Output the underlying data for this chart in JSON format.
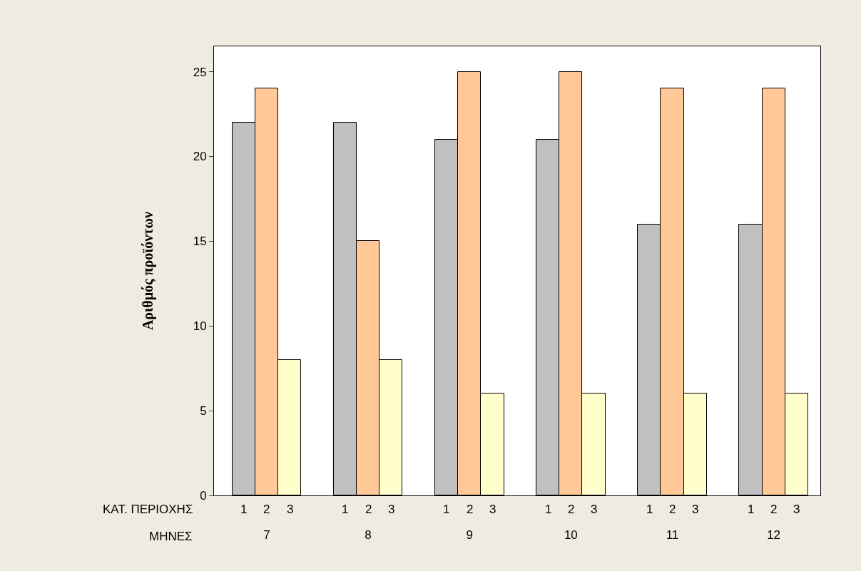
{
  "chart_data": {
    "type": "bar",
    "ylabel": "Αριθμός προϊόντων",
    "xlabel": "ΜΗΝΕΣ",
    "legend_title": "ΚΑΤ. ΠΕΡΙΟΧΗΣ",
    "categories": [
      "7",
      "8",
      "9",
      "10",
      "11",
      "12"
    ],
    "series": [
      {
        "name": "1",
        "color": "#c0c0c0",
        "values": [
          22,
          22,
          21,
          21,
          16,
          16
        ]
      },
      {
        "name": "2",
        "color": "#ffc896",
        "values": [
          24,
          15,
          25,
          25,
          24,
          24
        ]
      },
      {
        "name": "3",
        "color": "#ffffcc",
        "values": [
          8,
          8,
          6,
          6,
          6,
          6
        ]
      }
    ],
    "ylim": [
      0,
      26.5
    ],
    "yticks": [
      0,
      5,
      10,
      15,
      20,
      25
    ],
    "legend": false
  }
}
